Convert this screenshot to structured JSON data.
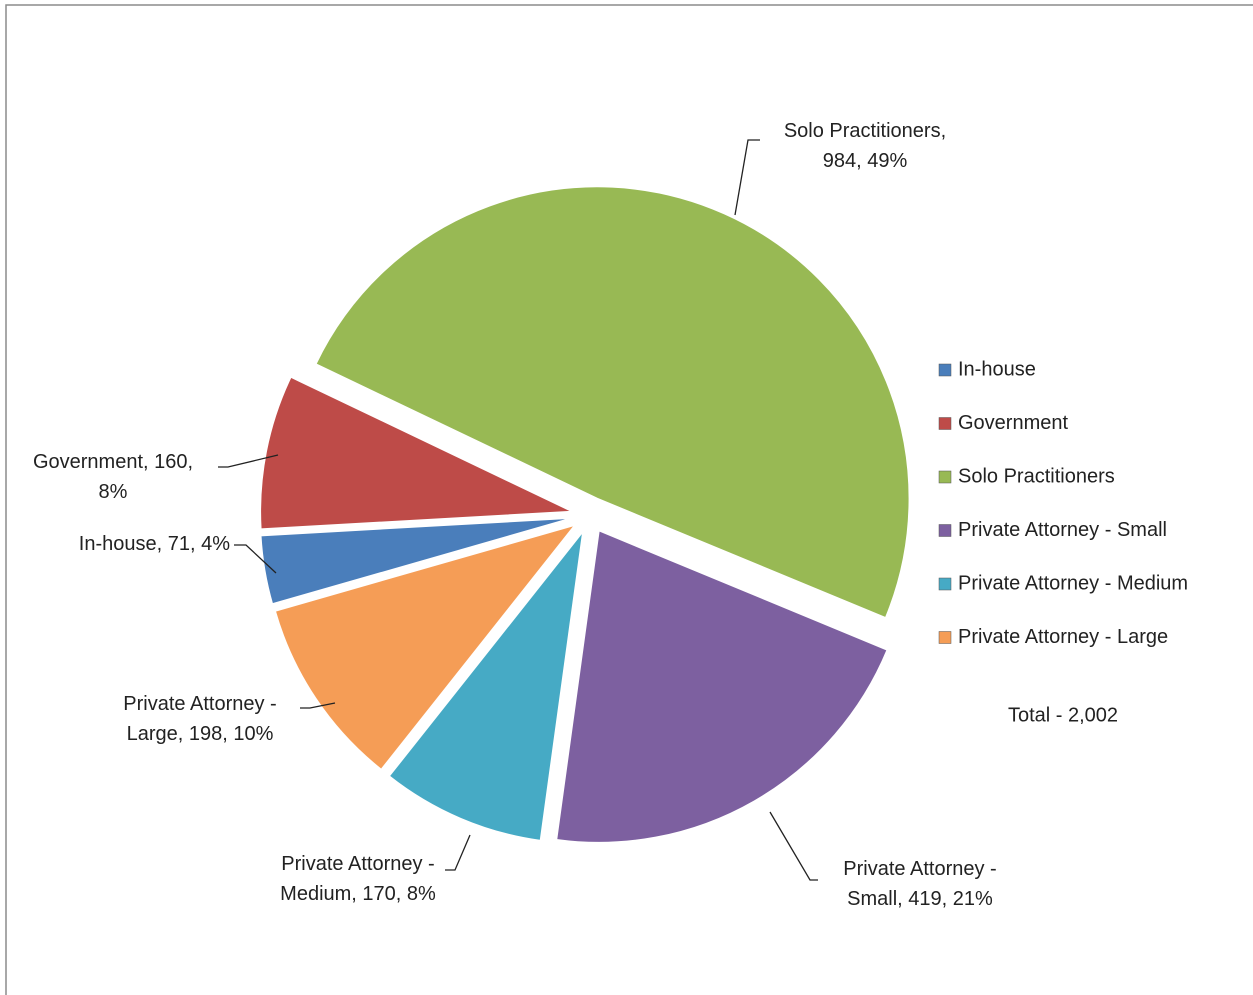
{
  "chart_data": {
    "type": "pie",
    "categories": [
      "In-house",
      "Government",
      "Solo Practitioners",
      "Private Attorney - Small",
      "Private Attorney - Medium",
      "Private Attorney - Large"
    ],
    "values": [
      71,
      160,
      984,
      419,
      170,
      198
    ],
    "value_labels": [
      [
        "In-house, 71, 4%"
      ],
      [
        "Government, 160,",
        "8%"
      ],
      [
        "Solo Practitioners,",
        "984, 49%"
      ],
      [
        "Private Attorney -",
        "Small, 419, 21%"
      ],
      [
        "Private Attorney -",
        "Medium, 170, 8%"
      ],
      [
        "Private Attorney -",
        "Large, 198, 10%"
      ]
    ],
    "colors": [
      "#4a7ebb",
      "#be4b48",
      "#98b954",
      "#7d60a0",
      "#46aac5",
      "#f59d56"
    ],
    "legend": "right",
    "annotation": "Total - 2,002"
  }
}
